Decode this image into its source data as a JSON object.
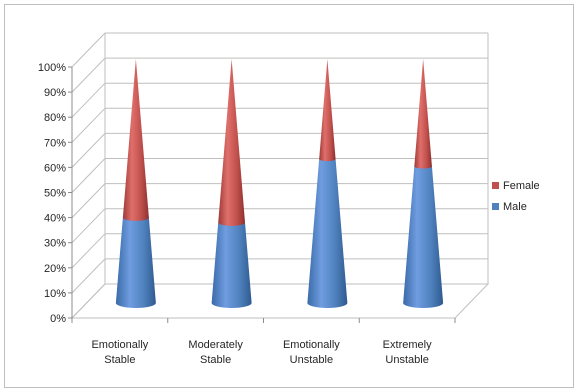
{
  "chart_data": {
    "type": "bar",
    "shape": "cone",
    "stacked": "percent",
    "categories": [
      [
        "Emotionally",
        "Stable"
      ],
      [
        "Moderately",
        "Stable"
      ],
      [
        "Emotionally",
        "Unstable"
      ],
      [
        "Extremely",
        "Unstable"
      ]
    ],
    "series": [
      {
        "name": "Male",
        "values": [
          35,
          33,
          59,
          56
        ],
        "color": "#4f81bd"
      },
      {
        "name": "Female",
        "values": [
          65,
          67,
          41,
          44
        ],
        "color": "#c0504d"
      }
    ],
    "yticks": [
      "0%",
      "10%",
      "20%",
      "30%",
      "40%",
      "50%",
      "60%",
      "70%",
      "80%",
      "90%",
      "100%"
    ],
    "ylim": [
      0,
      100
    ],
    "grid": true,
    "legend": "right",
    "legend_entries": [
      "Female",
      "Male"
    ]
  }
}
